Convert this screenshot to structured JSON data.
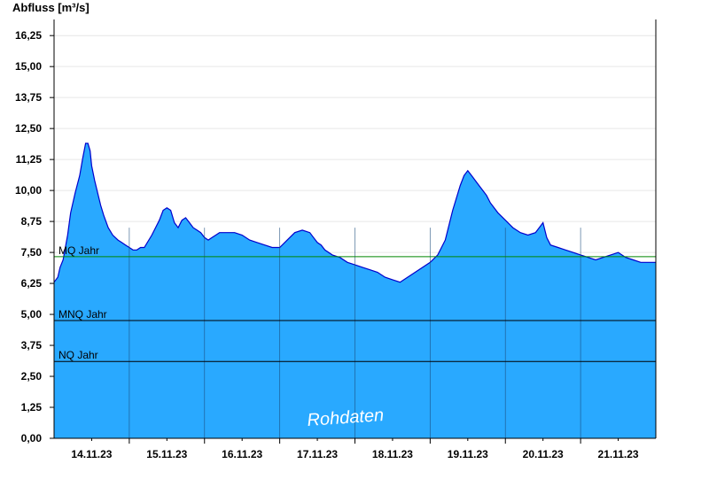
{
  "chart_data": {
    "type": "area",
    "title": "Abfluss [m³/s]",
    "xlabel": "",
    "ylabel": "Abfluss [m³/s]",
    "ylim": [
      0,
      16.9
    ],
    "yticks": [
      "0,00",
      "1,25",
      "2,50",
      "3,75",
      "5,00",
      "6,25",
      "7,50",
      "8,75",
      "10,00",
      "11,25",
      "12,50",
      "13,75",
      "15,00",
      "16,25"
    ],
    "ytick_values": [
      0,
      1.25,
      2.5,
      3.75,
      5.0,
      6.25,
      7.5,
      8.75,
      10.0,
      11.25,
      12.5,
      13.75,
      15.0,
      16.25
    ],
    "xlim": [
      0,
      8.0
    ],
    "xticks": [
      "14.11.23",
      "15.11.23",
      "16.11.23",
      "17.11.23",
      "18.11.23",
      "19.11.23",
      "20.11.23",
      "21.11.23"
    ],
    "xtick_values": [
      0.5,
      1.5,
      2.5,
      3.5,
      4.5,
      5.5,
      6.5,
      7.5
    ],
    "day_separators": [
      1,
      2,
      3,
      4,
      5,
      6,
      7
    ],
    "grid": true,
    "fill_color": "#29a9ff",
    "line_color": "#0000cc",
    "series": [
      {
        "x": [
          0,
          0.05,
          0.08,
          0.12,
          0.18,
          0.22,
          0.28,
          0.34,
          0.38,
          0.42,
          0.45,
          0.48,
          0.5,
          0.54,
          0.58,
          0.62,
          0.66,
          0.72,
          0.78,
          0.85,
          0.9,
          0.95,
          1.0,
          1.05,
          1.1,
          1.15,
          1.2,
          1.3,
          1.4,
          1.45,
          1.5,
          1.55,
          1.6,
          1.65,
          1.7,
          1.75,
          1.8,
          1.85,
          1.9,
          1.95,
          2.0,
          2.05,
          2.1,
          2.15,
          2.2,
          2.3,
          2.4,
          2.5,
          2.6,
          2.7,
          2.8,
          2.9,
          3.0,
          3.1,
          3.2,
          3.3,
          3.4,
          3.45,
          3.5,
          3.55,
          3.6,
          3.7,
          3.8,
          3.9,
          4.0,
          4.1,
          4.2,
          4.3,
          4.4,
          4.5,
          4.6,
          4.7,
          4.8,
          4.9,
          5.0,
          5.1,
          5.2,
          5.3,
          5.4,
          5.45,
          5.5,
          5.55,
          5.6,
          5.65,
          5.7,
          5.75,
          5.8,
          5.9,
          6.0,
          6.1,
          6.2,
          6.3,
          6.4,
          6.5,
          6.55,
          6.6,
          6.7,
          6.8,
          6.9,
          7.0,
          7.1,
          7.2,
          7.3,
          7.4,
          7.5,
          7.6,
          7.7,
          7.8,
          7.9,
          8.0
        ],
        "y": [
          6.3,
          6.5,
          6.9,
          7.2,
          8.2,
          9.1,
          9.9,
          10.6,
          11.3,
          11.9,
          11.9,
          11.6,
          11.0,
          10.4,
          9.9,
          9.4,
          9.0,
          8.5,
          8.2,
          8.0,
          7.9,
          7.8,
          7.7,
          7.6,
          7.6,
          7.7,
          7.7,
          8.2,
          8.8,
          9.2,
          9.3,
          9.2,
          8.7,
          8.5,
          8.8,
          8.9,
          8.7,
          8.5,
          8.4,
          8.3,
          8.1,
          8.0,
          8.1,
          8.2,
          8.3,
          8.3,
          8.3,
          8.2,
          8.0,
          7.9,
          7.8,
          7.7,
          7.7,
          8.0,
          8.3,
          8.4,
          8.3,
          8.1,
          7.9,
          7.8,
          7.6,
          7.4,
          7.3,
          7.1,
          7.0,
          6.9,
          6.8,
          6.7,
          6.5,
          6.4,
          6.3,
          6.5,
          6.7,
          6.9,
          7.1,
          7.4,
          8.0,
          9.2,
          10.2,
          10.6,
          10.8,
          10.6,
          10.4,
          10.2,
          10.0,
          9.8,
          9.5,
          9.1,
          8.8,
          8.5,
          8.3,
          8.2,
          8.3,
          8.7,
          8.1,
          7.8,
          7.7,
          7.6,
          7.5,
          7.4,
          7.3,
          7.2,
          7.3,
          7.4,
          7.5,
          7.3,
          7.2,
          7.1,
          7.1,
          7.1
        ]
      }
    ],
    "reference_lines": [
      {
        "label": "MQ Jahr",
        "value": 7.33,
        "color": "#008800"
      },
      {
        "label": "MNQ Jahr",
        "value": 4.75,
        "color": "#000000"
      },
      {
        "label": "NQ Jahr",
        "value": 3.1,
        "color": "#000000"
      }
    ],
    "watermark": "Rohdaten"
  }
}
